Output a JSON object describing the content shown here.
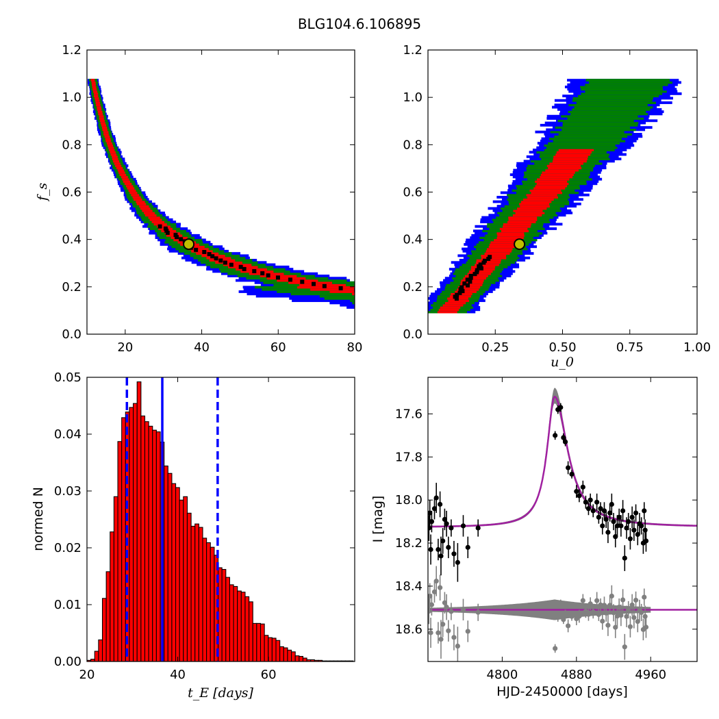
{
  "figure": {
    "title": "BLG104.6.106895"
  },
  "colors": {
    "level1": "#ff0000",
    "level2": "#008000",
    "level3": "#0000ff",
    "best": "#000000",
    "marker_fill": "#bfbf00",
    "hist_bar": "#ff0000",
    "vline": "#0000ff",
    "model": "#a020a0",
    "band": "#808080",
    "data": "#000000",
    "residual": "#808080"
  },
  "chart_data": [
    {
      "id": "te_fs",
      "type": "heatmap",
      "title": "",
      "xlabel": "",
      "ylabel": "f_s",
      "xlim": [
        10,
        80
      ],
      "ylim": [
        0,
        1.2
      ],
      "xticks": [
        "20",
        "40",
        "60",
        "80"
      ],
      "yticks": [
        "0.0",
        "0.2",
        "0.4",
        "0.6",
        "0.8",
        "1.0",
        "1.2"
      ],
      "relation": {
        "form": "f_s = 9.8 * t_E^-0.905",
        "levels_width": [
          0.09,
          0.19,
          0.25
        ]
      },
      "best_fit": {
        "x": 36.6,
        "y": 0.38
      }
    },
    {
      "id": "u0_fs",
      "type": "heatmap",
      "title": "",
      "xlabel": "u_0",
      "ylabel": "",
      "xlim": [
        0,
        1.0
      ],
      "ylim": [
        0,
        1.2
      ],
      "xticks": [
        "0.25",
        "0.50",
        "0.75",
        "1.00"
      ],
      "yticks": [
        "0.0",
        "0.2",
        "0.4",
        "0.6",
        "0.8",
        "1.0",
        "1.2"
      ],
      "relation": {
        "form": "u0 = 0.0086 + 0.733*f_s - 0.032*f_s^2",
        "levels_width": [
          0.06,
          0.12,
          0.16
        ]
      },
      "best_fit": {
        "x": 0.34,
        "y": 0.38
      }
    },
    {
      "id": "te_hist",
      "type": "bar",
      "title": "",
      "xlabel": "t_E [days]",
      "ylabel": "normed N",
      "xlim": [
        20,
        79
      ],
      "ylim": [
        0,
        0.05
      ],
      "xticks": [
        "20",
        "40",
        "60"
      ],
      "yticks": [
        "0.00",
        "0.01",
        "0.02",
        "0.03",
        "0.04",
        "0.05"
      ],
      "bin_start": 20.0,
      "bin_width": 0.85,
      "values": [
        0.0002,
        0.0004,
        0.0018,
        0.0038,
        0.0111,
        0.0158,
        0.0228,
        0.029,
        0.0387,
        0.0429,
        0.0439,
        0.0447,
        0.0454,
        0.0492,
        0.0432,
        0.0422,
        0.0414,
        0.0407,
        0.0404,
        0.0386,
        0.0344,
        0.0331,
        0.0313,
        0.0306,
        0.0284,
        0.029,
        0.0261,
        0.0238,
        0.0242,
        0.0236,
        0.0217,
        0.0209,
        0.0201,
        0.0187,
        0.0165,
        0.0162,
        0.0148,
        0.0135,
        0.0132,
        0.0124,
        0.0122,
        0.0114,
        0.0105,
        0.0067,
        0.0067,
        0.0066,
        0.0046,
        0.0042,
        0.0041,
        0.0037,
        0.0026,
        0.0024,
        0.002,
        0.0017,
        0.001,
        0.0009,
        0.0006,
        0.0003,
        0.0003,
        0.0002,
        0.0002,
        0.0001,
        0.0001,
        0.0001,
        0.0001,
        0.0001,
        0.0001,
        0.0001,
        0.0001
      ],
      "vlines": {
        "median": 36.6,
        "lower": 28.8,
        "upper": 48.8
      }
    },
    {
      "id": "lightcurve",
      "type": "scatter",
      "title": "",
      "xlabel": "HJD-2450000 [days]",
      "ylabel": "I [mag]",
      "xlim": [
        4720,
        5010
      ],
      "ylim": [
        18.75,
        17.43
      ],
      "xticks": [
        "4800",
        "4880",
        "4960"
      ],
      "yticks": [
        "17.6",
        "17.8",
        "18.0",
        "18.2",
        "18.4",
        "18.6"
      ],
      "model": {
        "baseline": 18.127,
        "t0": 4856.5,
        "peak_mag": 17.52,
        "rise_days": 10,
        "fall_days": 17
      },
      "residual_offset": 18.51,
      "points": [
        [
          4721,
          18.13,
          0.06
        ],
        [
          4722,
          18.06,
          0.06
        ],
        [
          4723,
          18.23,
          0.07
        ],
        [
          4724,
          18.1,
          0.05
        ],
        [
          4727,
          18.04,
          0.05
        ],
        [
          4729,
          17.99,
          0.07
        ],
        [
          4731,
          18.23,
          0.05
        ],
        [
          4733,
          18.02,
          0.06
        ],
        [
          4734,
          18.26,
          0.09
        ],
        [
          4736,
          18.19,
          0.06
        ],
        [
          4738,
          18.09,
          0.05
        ],
        [
          4740,
          18.11,
          0.06
        ],
        [
          4742,
          18.22,
          0.05
        ],
        [
          4745,
          18.13,
          0.04
        ],
        [
          4748,
          18.25,
          0.06
        ],
        [
          4752,
          18.29,
          0.09
        ],
        [
          4758,
          18.12,
          0.05
        ],
        [
          4763,
          18.22,
          0.05
        ],
        [
          4774,
          18.13,
          0.04
        ],
        [
          4857,
          17.7,
          0.02
        ],
        [
          4860,
          17.58,
          0.02
        ],
        [
          4863,
          17.57,
          0.02
        ],
        [
          4866,
          17.71,
          0.02
        ],
        [
          4868,
          17.73,
          0.02
        ],
        [
          4871,
          17.85,
          0.03
        ],
        [
          4875,
          17.88,
          0.02
        ],
        [
          4880,
          17.96,
          0.03
        ],
        [
          4883,
          17.98,
          0.03
        ],
        [
          4887,
          17.94,
          0.03
        ],
        [
          4890,
          18.01,
          0.03
        ],
        [
          4893,
          18.04,
          0.03
        ],
        [
          4895,
          18.0,
          0.03
        ],
        [
          4898,
          18.05,
          0.03
        ],
        [
          4902,
          18.01,
          0.04
        ],
        [
          4904,
          18.08,
          0.03
        ],
        [
          4906,
          18.04,
          0.03
        ],
        [
          4908,
          18.12,
          0.04
        ],
        [
          4910,
          18.05,
          0.04
        ],
        [
          4912,
          18.09,
          0.04
        ],
        [
          4914,
          18.15,
          0.05
        ],
        [
          4916,
          18.06,
          0.04
        ],
        [
          4918,
          18.02,
          0.05
        ],
        [
          4920,
          18.1,
          0.04
        ],
        [
          4922,
          18.17,
          0.05
        ],
        [
          4924,
          18.12,
          0.05
        ],
        [
          4926,
          18.08,
          0.04
        ],
        [
          4928,
          18.12,
          0.05
        ],
        [
          4930,
          18.05,
          0.05
        ],
        [
          4932,
          18.27,
          0.06
        ],
        [
          4934,
          18.13,
          0.05
        ],
        [
          4936,
          18.1,
          0.04
        ],
        [
          4938,
          18.18,
          0.05
        ],
        [
          4940,
          18.08,
          0.05
        ],
        [
          4942,
          18.14,
          0.05
        ],
        [
          4944,
          18.06,
          0.04
        ],
        [
          4946,
          18.16,
          0.05
        ],
        [
          4948,
          18.11,
          0.05
        ],
        [
          4950,
          18.12,
          0.04
        ],
        [
          4952,
          18.2,
          0.05
        ],
        [
          4953,
          18.05,
          0.04
        ],
        [
          4954,
          18.14,
          0.05
        ],
        [
          4955,
          18.19,
          0.05
        ]
      ]
    }
  ]
}
